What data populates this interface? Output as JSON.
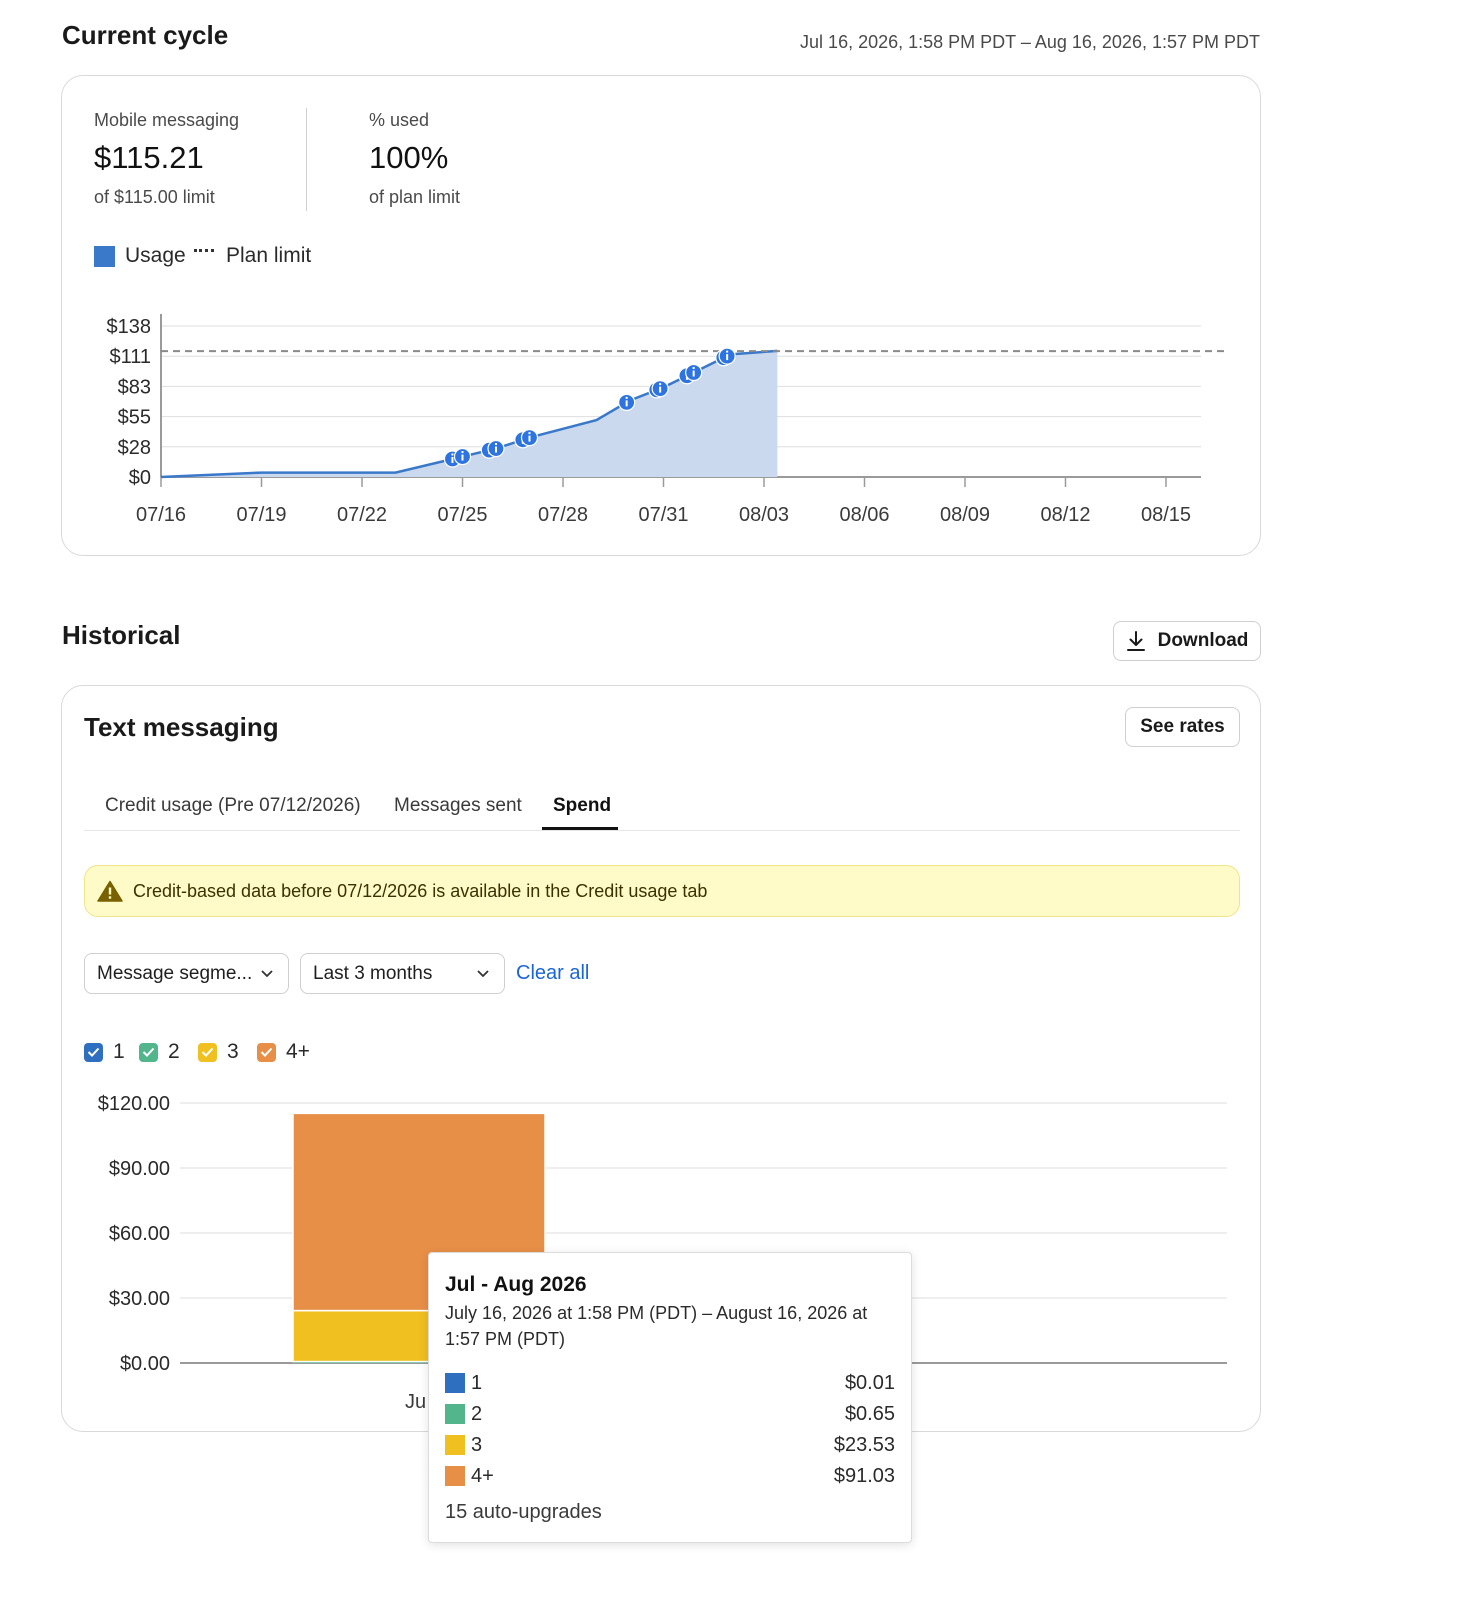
{
  "current_cycle": {
    "title": "Current cycle",
    "date_range": "Jul 16, 2026, 1:58 PM PDT – Aug 16, 2026, 1:57 PM PDT",
    "stats": [
      {
        "label": "Mobile messaging",
        "value": "$115.21",
        "sub": "of $115.00 limit"
      },
      {
        "label": "% used",
        "value": "100%",
        "sub": "of plan limit"
      }
    ],
    "legend": {
      "usage": "Usage",
      "plan_limit": "Plan limit"
    },
    "colors": {
      "usage_line": "#3a78c9",
      "usage_fill": "#cad9ee",
      "marker": "#2d74e0",
      "limit": "#8a8a8a"
    }
  },
  "chart_data": [
    {
      "type": "area",
      "title": "",
      "yticks": [
        "$138",
        "$111",
        "$83",
        "$55",
        "$28",
        "$0"
      ],
      "ylim": [
        0,
        138
      ],
      "x": [
        "07/16",
        "07/19",
        "07/22",
        "07/25",
        "07/28",
        "07/31",
        "08/03",
        "08/06",
        "08/09",
        "08/12",
        "08/15"
      ],
      "plan_limit": 115,
      "series": [
        {
          "name": "Usage",
          "points": [
            {
              "date": "07/16",
              "value": 0
            },
            {
              "date": "07/19",
              "value": 4
            },
            {
              "date": "07/23",
              "value": 4
            },
            {
              "date": "07/24.5",
              "value": 15
            },
            {
              "date": "07/26",
              "value": 26
            },
            {
              "date": "07/27",
              "value": 36
            },
            {
              "date": "07/29",
              "value": 52
            },
            {
              "date": "07/30",
              "value": 70
            },
            {
              "date": "07/31",
              "value": 82
            },
            {
              "date": "08/01",
              "value": 97
            },
            {
              "date": "08/02",
              "value": 112
            },
            {
              "date": "08/03.4",
              "value": 115.21
            }
          ],
          "markers": [
            "07/24.7",
            "07/25",
            "07/25.8",
            "07/26",
            "07/26.8",
            "07/27",
            "07/29.9",
            "07/30.8",
            "07/30.9",
            "07/31.7",
            "07/31.9",
            "08/01.8",
            "08/01.9"
          ]
        }
      ],
      "grid": true
    },
    {
      "type": "bar",
      "title": "",
      "yticks": [
        "$120.00",
        "$90.00",
        "$60.00",
        "$30.00",
        "$0.00"
      ],
      "ylim": [
        0,
        120
      ],
      "categories": [
        "Jul - Aug 2026"
      ],
      "series": [
        {
          "name": "1",
          "values": [
            0.01
          ]
        },
        {
          "name": "2",
          "values": [
            0.65
          ]
        },
        {
          "name": "3",
          "values": [
            23.53
          ]
        },
        {
          "name": "4+",
          "values": [
            91.03
          ]
        }
      ],
      "grid": true
    }
  ],
  "historical": {
    "title": "Historical",
    "download_label": "Download",
    "card_title": "Text messaging",
    "see_rates_label": "See rates",
    "tabs": [
      {
        "label": "Credit usage (Pre 07/12/2026)"
      },
      {
        "label": "Messages sent"
      },
      {
        "label": "Spend"
      }
    ],
    "warning_text": "Credit-based data before 07/12/2026 is available in the Credit usage tab",
    "filter_segment": "Message segme...",
    "filter_period": "Last 3 months",
    "clear_all": "Clear all",
    "legend": [
      {
        "label": "1",
        "color": "#2f6fc0"
      },
      {
        "label": "2",
        "color": "#52b58c"
      },
      {
        "label": "3",
        "color": "#f0c020"
      },
      {
        "label": "4+",
        "color": "#e88f47"
      }
    ],
    "x_label_partial": "Ju",
    "tooltip": {
      "title": "Jul - Aug 2026",
      "range_line1": "July 16, 2026 at 1:58 PM (PDT) – August 16, 2026 at",
      "range_line2": "1:57 PM (PDT)",
      "rows": [
        {
          "label": "1",
          "value": "$0.01",
          "color": "#2f6fc0"
        },
        {
          "label": "2",
          "value": "$0.65",
          "color": "#52b58c"
        },
        {
          "label": "3",
          "value": "$23.53",
          "color": "#f0c020"
        },
        {
          "label": "4+",
          "value": "$91.03",
          "color": "#e88f47"
        }
      ],
      "footer": "15 auto-upgrades"
    }
  }
}
